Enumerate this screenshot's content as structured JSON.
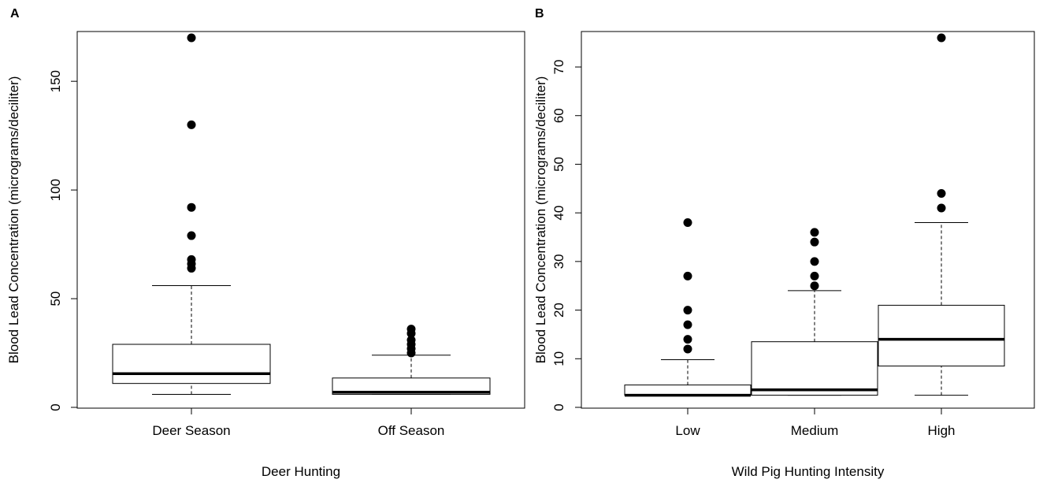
{
  "chart_data": [
    {
      "panel_label": "A",
      "type": "boxplot",
      "xlabel": "Deer Hunting",
      "ylabel": "Blood Lead Concentration (micrograms/deciliter)",
      "ylim": [
        0,
        170
      ],
      "yticks": [
        0,
        50,
        100,
        150
      ],
      "frame": "full box",
      "categories": [
        "Deer Season",
        "Off Season"
      ],
      "boxes": [
        {
          "category": "Deer Season",
          "whisker_low": 6,
          "q1": 11,
          "median": 15.5,
          "q3": 29,
          "whisker_high": 56,
          "outliers": [
            64,
            66,
            68,
            79,
            92,
            130,
            170
          ]
        },
        {
          "category": "Off Season",
          "whisker_low": 6,
          "q1": 6,
          "median": 7,
          "q3": 13.5,
          "whisker_high": 24,
          "outliers": [
            25,
            27,
            29,
            31,
            34,
            36
          ]
        }
      ]
    },
    {
      "panel_label": "B",
      "type": "boxplot",
      "xlabel": "Wild Pig Hunting Intensity",
      "ylabel": "Blood Lead Concentration (micrograms/deciliter)",
      "ylim": [
        0,
        76
      ],
      "yticks": [
        0,
        10,
        20,
        30,
        40,
        50,
        60,
        70
      ],
      "frame": "full box",
      "categories": [
        "Low",
        "Medium",
        "High"
      ],
      "boxes": [
        {
          "category": "Low",
          "whisker_low": 2.5,
          "q1": 2.5,
          "median": 2.5,
          "q3": 4.6,
          "whisker_high": 9.8,
          "outliers": [
            12,
            14,
            17,
            20,
            27,
            38
          ]
        },
        {
          "category": "Medium",
          "whisker_low": 2.5,
          "q1": 2.5,
          "median": 3.6,
          "q3": 13.5,
          "whisker_high": 24,
          "outliers": [
            25,
            27,
            30,
            34,
            36
          ]
        },
        {
          "category": "High",
          "whisker_low": 2.5,
          "q1": 8.5,
          "median": 14,
          "q3": 21,
          "whisker_high": 38,
          "outliers": [
            41,
            44,
            76
          ]
        }
      ]
    }
  ]
}
